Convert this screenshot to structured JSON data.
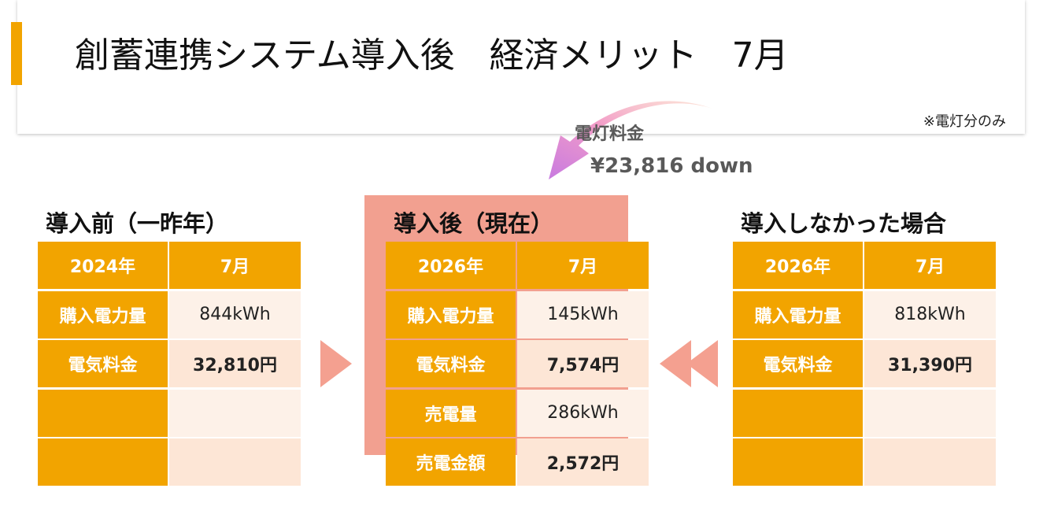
{
  "header": {
    "title": "創蓄連携システム導入後　経済メリット　7月",
    "note": "※電灯分のみ"
  },
  "savings": {
    "label": "電灯料金",
    "amount": "¥23,816 down"
  },
  "tables": [
    {
      "title": "導入前（一昨年）",
      "columns": [
        "2024年",
        "7月"
      ],
      "rows": [
        [
          "購入電力量",
          "844kWh"
        ],
        [
          "電気料金",
          "32,810円"
        ]
      ]
    },
    {
      "title": "導入後（現在）",
      "columns": [
        "2026年",
        "7月"
      ],
      "rows": [
        [
          "購入電力量",
          "145kWh"
        ],
        [
          "電気料金",
          "7,574円"
        ],
        [
          "売電量",
          "286kWh"
        ],
        [
          "売電金額",
          "2,572円"
        ]
      ]
    },
    {
      "title": "導入しなかった場合",
      "columns": [
        "2026年",
        "7月"
      ],
      "rows": [
        [
          "購入電力量",
          "818kWh"
        ],
        [
          "電気料金",
          "31,390円"
        ]
      ]
    }
  ]
}
